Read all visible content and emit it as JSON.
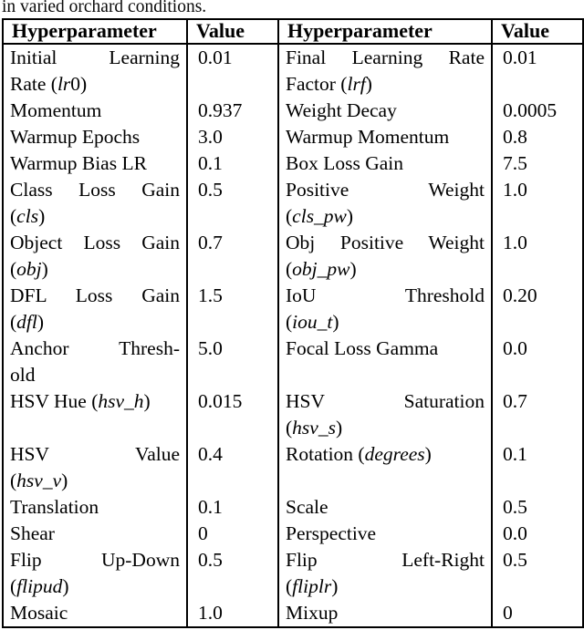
{
  "caption": "in varied orchard conditions.",
  "table": {
    "headers": [
      "Hyperparameter",
      "Value",
      "Hyperparameter",
      "Value"
    ],
    "rows": [
      {
        "param1": {
          "lines": [
            [
              {
                "t": "Initial Learning"
              }
            ],
            [
              {
                "t": "Rate ("
              },
              {
                "t": "lr",
                "i": true
              },
              {
                "t": "0)"
              }
            ]
          ]
        },
        "value1": "0.01",
        "param2": {
          "lines": [
            [
              {
                "t": "Final Learning Rate"
              }
            ],
            [
              {
                "t": "Factor ("
              },
              {
                "t": "lrf",
                "i": true
              },
              {
                "t": ")"
              }
            ]
          ]
        },
        "value2": "0.01"
      },
      {
        "param1": {
          "lines": [
            [
              {
                "t": "Momentum"
              }
            ]
          ]
        },
        "value1": "0.937",
        "param2": {
          "lines": [
            [
              {
                "t": "Weight Decay"
              }
            ]
          ]
        },
        "value2": "0.0005"
      },
      {
        "param1": {
          "lines": [
            [
              {
                "t": "Warmup Epochs"
              }
            ]
          ]
        },
        "value1": "3.0",
        "param2": {
          "lines": [
            [
              {
                "t": "Warmup Momentum"
              }
            ]
          ]
        },
        "value2": "0.8"
      },
      {
        "param1": {
          "lines": [
            [
              {
                "t": "Warmup Bias LR"
              }
            ]
          ]
        },
        "value1": "0.1",
        "param2": {
          "lines": [
            [
              {
                "t": "Box Loss Gain"
              }
            ]
          ]
        },
        "value2": "7.5"
      },
      {
        "param1": {
          "lines": [
            [
              {
                "t": "Class Loss Gain"
              }
            ],
            [
              {
                "t": "("
              },
              {
                "t": "cls",
                "i": true
              },
              {
                "t": ")"
              }
            ]
          ]
        },
        "value1": "0.5",
        "param2": {
          "lines": [
            [
              {
                "t": "Positive Weight"
              }
            ],
            [
              {
                "t": "("
              },
              {
                "t": "cls_pw",
                "i": true
              },
              {
                "t": ")"
              }
            ]
          ]
        },
        "value2": "1.0"
      },
      {
        "param1": {
          "lines": [
            [
              {
                "t": "Object Loss Gain"
              }
            ],
            [
              {
                "t": "("
              },
              {
                "t": "obj",
                "i": true
              },
              {
                "t": ")"
              }
            ]
          ]
        },
        "value1": "0.7",
        "param2": {
          "lines": [
            [
              {
                "t": "Obj Positive Weight"
              }
            ],
            [
              {
                "t": "("
              },
              {
                "t": "obj_pw",
                "i": true
              },
              {
                "t": ")"
              }
            ]
          ]
        },
        "value2": "1.0"
      },
      {
        "param1": {
          "lines": [
            [
              {
                "t": "DFL Loss Gain"
              }
            ],
            [
              {
                "t": "("
              },
              {
                "t": "dfl",
                "i": true
              },
              {
                "t": ")"
              }
            ]
          ]
        },
        "value1": "1.5",
        "param2": {
          "lines": [
            [
              {
                "t": "IoU Threshold"
              }
            ],
            [
              {
                "t": "("
              },
              {
                "t": "iou_t",
                "i": true
              },
              {
                "t": ")"
              }
            ]
          ]
        },
        "value2": "0.20"
      },
      {
        "param1": {
          "lines": [
            [
              {
                "t": "Anchor Thresh-"
              }
            ],
            [
              {
                "t": "old"
              }
            ]
          ]
        },
        "value1": "5.0",
        "param2": {
          "lines": [
            [
              {
                "t": "Focal Loss Gamma"
              }
            ]
          ]
        },
        "value2": "0.0"
      },
      {
        "param1": {
          "lines": [
            [
              {
                "t": "HSV Hue ("
              },
              {
                "t": "hsv_h",
                "i": true
              },
              {
                "t": ")"
              }
            ]
          ]
        },
        "value1": "0.015",
        "param2": {
          "lines": [
            [
              {
                "t": "HSV Saturation"
              }
            ],
            [
              {
                "t": "("
              },
              {
                "t": "hsv_s",
                "i": true
              },
              {
                "t": ")"
              }
            ]
          ]
        },
        "value2": "0.7"
      },
      {
        "param1": {
          "lines": [
            [
              {
                "t": "HSV Value"
              }
            ],
            [
              {
                "t": "("
              },
              {
                "t": "hsv_v",
                "i": true
              },
              {
                "t": ")"
              }
            ]
          ]
        },
        "value1": "0.4",
        "param2": {
          "lines": [
            [
              {
                "t": "Rotation ("
              },
              {
                "t": "degrees",
                "i": true
              },
              {
                "t": ")"
              }
            ]
          ]
        },
        "value2": "0.1"
      },
      {
        "param1": {
          "lines": [
            [
              {
                "t": "Translation"
              }
            ]
          ]
        },
        "value1": "0.1",
        "param2": {
          "lines": [
            [
              {
                "t": "Scale"
              }
            ]
          ]
        },
        "value2": "0.5"
      },
      {
        "param1": {
          "lines": [
            [
              {
                "t": "Shear"
              }
            ]
          ]
        },
        "value1": "0",
        "param2": {
          "lines": [
            [
              {
                "t": "Perspective"
              }
            ]
          ]
        },
        "value2": "0.0"
      },
      {
        "param1": {
          "lines": [
            [
              {
                "t": "Flip Up-Down"
              }
            ],
            [
              {
                "t": "("
              },
              {
                "t": "flipud",
                "i": true
              },
              {
                "t": ")"
              }
            ]
          ]
        },
        "value1": "0.5",
        "param2": {
          "lines": [
            [
              {
                "t": "Flip Left-Right"
              }
            ],
            [
              {
                "t": "("
              },
              {
                "t": "fliplr",
                "i": true
              },
              {
                "t": ")"
              }
            ]
          ]
        },
        "value2": "0.5"
      },
      {
        "param1": {
          "lines": [
            [
              {
                "t": "Mosaic"
              }
            ]
          ]
        },
        "value1": "1.0",
        "param2": {
          "lines": [
            [
              {
                "t": "Mixup"
              }
            ]
          ]
        },
        "value2": "0"
      }
    ]
  }
}
